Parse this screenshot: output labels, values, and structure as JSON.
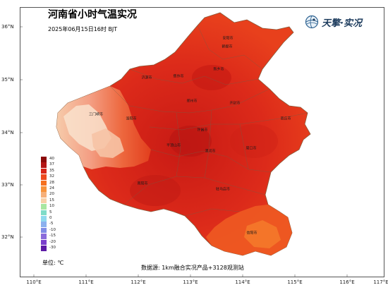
{
  "header": {
    "title": "河南省小时气温实况",
    "subtitle": "2025年06月15日16时  BJT",
    "logo_text": "天擎·实况",
    "logo_icon": "globe-icon"
  },
  "axes": {
    "lat_labels": [
      "36°N",
      "35°N",
      "34°N",
      "33°N",
      "32°N"
    ],
    "lon_labels": [
      "110°E",
      "111°E",
      "112°E",
      "113°E",
      "114°E",
      "115°E",
      "116°E",
      "117°E"
    ]
  },
  "cities": [
    {
      "name": "安阳市"
    },
    {
      "name": "鹤壁市"
    },
    {
      "name": "新乡市"
    },
    {
      "name": "焦作市"
    },
    {
      "name": "济源市"
    },
    {
      "name": "郑州市"
    },
    {
      "name": "开封市"
    },
    {
      "name": "商丘市"
    },
    {
      "name": "洛阳市"
    },
    {
      "name": "三门峡市"
    },
    {
      "name": "许昌市"
    },
    {
      "name": "平顶山市"
    },
    {
      "name": "漯河市"
    },
    {
      "name": "周口市"
    },
    {
      "name": "南阳市"
    },
    {
      "name": "驻马店市"
    },
    {
      "name": "信阳市"
    }
  ],
  "legend": {
    "items": [
      {
        "value": "40",
        "color": "#8b0a0a"
      },
      {
        "value": "37",
        "color": "#b31515"
      },
      {
        "value": "35",
        "color": "#d82518"
      },
      {
        "value": "32",
        "color": "#ee4a1e"
      },
      {
        "value": "28",
        "color": "#f5701f"
      },
      {
        "value": "24",
        "color": "#f7923a"
      },
      {
        "value": "20",
        "color": "#f6b07a"
      },
      {
        "value": "15",
        "color": "#f7d0a8"
      },
      {
        "value": "10",
        "color": "#a8e6a0"
      },
      {
        "value": "5",
        "color": "#7fdcc8"
      },
      {
        "value": "0",
        "color": "#8fd9ee"
      },
      {
        "value": "-5",
        "color": "#8ab0ee"
      },
      {
        "value": "-10",
        "color": "#7f8ce6"
      },
      {
        "value": "-15",
        "color": "#8a6bdb"
      },
      {
        "value": "-20",
        "color": "#7a3fcc"
      },
      {
        "value": "-30",
        "color": "#5c1aa6"
      }
    ],
    "unit": "单位: ℃"
  },
  "footer": {
    "source": "数据源: 1km融合实况产品+3128观测站"
  }
}
